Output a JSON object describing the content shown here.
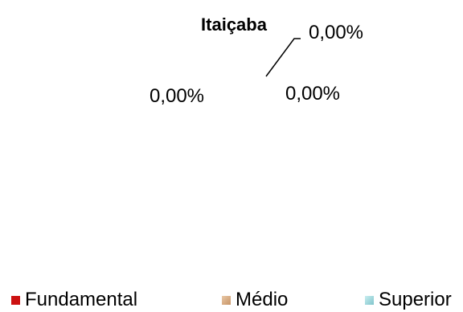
{
  "chart_data": {
    "type": "pie",
    "title": "Itaiçaba",
    "categories": [
      "Fundamental",
      "Médio",
      "Superior"
    ],
    "values": [
      0,
      0,
      0
    ],
    "data_labels": [
      "0,00%",
      "0,00%",
      "0,00%"
    ],
    "legend": {
      "position": "bottom",
      "entries": [
        "Fundamental",
        "Médio",
        "Superior"
      ]
    },
    "colors": [
      "#cc1111",
      "#d8b08a",
      "#a8d8dc"
    ]
  }
}
